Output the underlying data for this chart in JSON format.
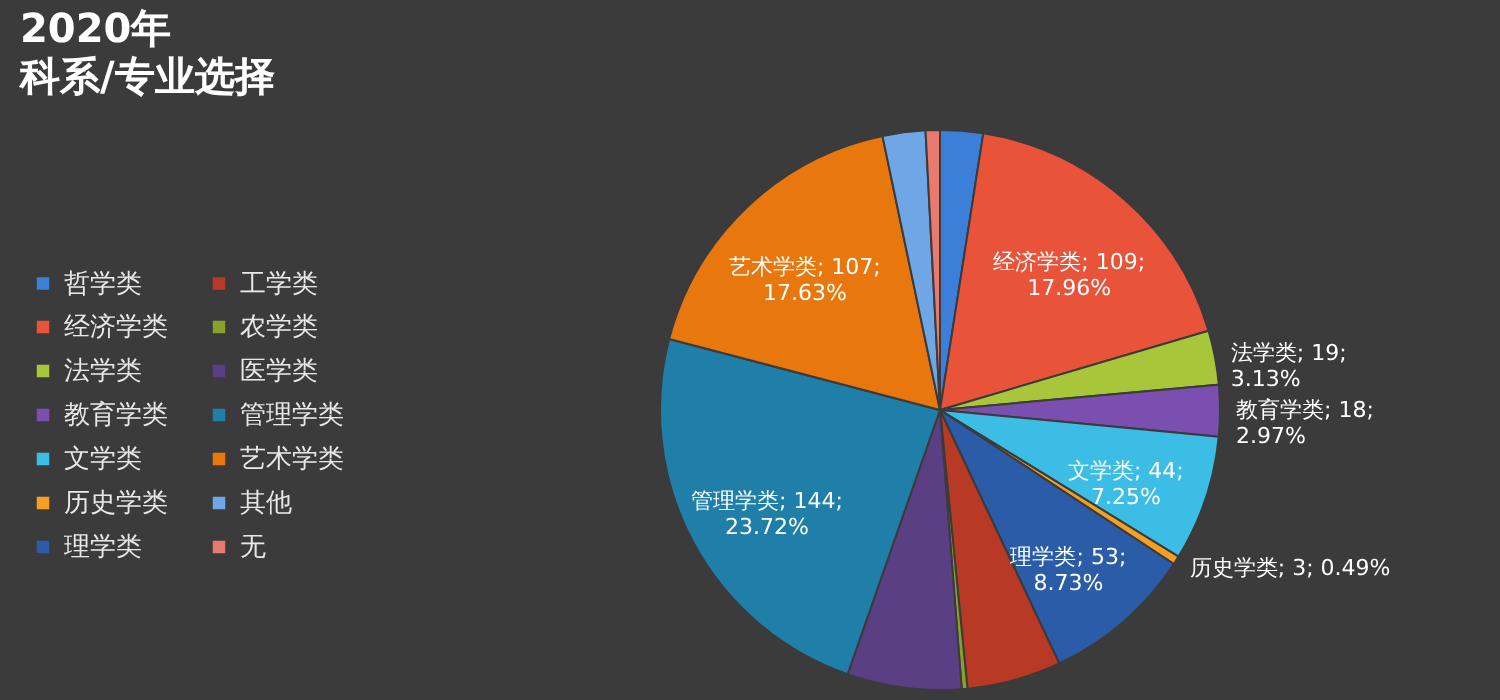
{
  "chart_data": {
    "type": "pie",
    "title": "2020年",
    "subtitle": "科系/专业选择",
    "categories": [
      "哲学类",
      "经济学类",
      "法学类",
      "教育学类",
      "文学类",
      "历史学类",
      "理学类",
      "工学类",
      "农学类",
      "医学类",
      "管理学类",
      "艺术学类",
      "其他",
      "无"
    ],
    "values": [
      15,
      109,
      19,
      18,
      44,
      3,
      53,
      33,
      2,
      40,
      144,
      107,
      15,
      5
    ],
    "colors": [
      "#3c7fd8",
      "#e8533a",
      "#a8c63a",
      "#7b4fb0",
      "#3cbde6",
      "#f5a020",
      "#2a5ca8",
      "#b83a25",
      "#8aa02a",
      "#5a3f85",
      "#1f7fa8",
      "#e8780e",
      "#6ea6e6",
      "#e87a70"
    ],
    "value_labels": [
      null,
      "经济学类; 109;\n17.96%",
      "法学类; 19;\n3.13%",
      "教育学类; 18;\n2.97%",
      "文学类; 44;\n7.25%",
      "历史学类; 3; 0.49%",
      "理学类; 53;\n8.73%",
      null,
      null,
      null,
      "管理学类; 144;\n23.72%",
      "艺术学类; 107;\n17.63%",
      null,
      null
    ],
    "legend": "left"
  }
}
